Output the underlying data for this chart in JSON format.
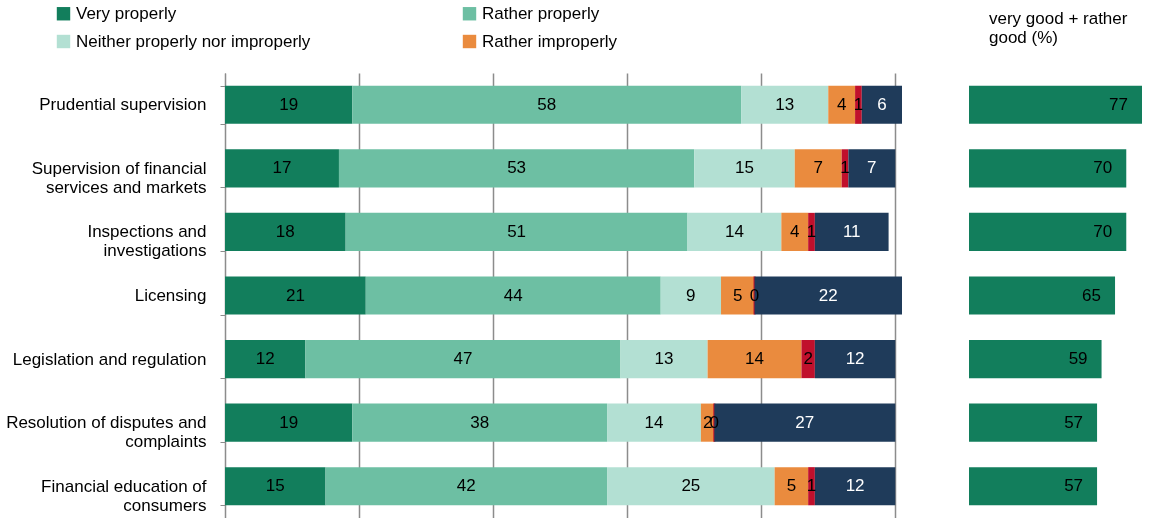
{
  "chart_data": [
    {
      "type": "bar",
      "orientation": "horizontal",
      "stacked": true,
      "categories": [
        "Prudential supervision",
        "Supervision of financial services and markets",
        "Inspections and investigations",
        "Licensing",
        "Legislation and regulation",
        "Resolution of disputes and complaints",
        "Financial education of consumers"
      ],
      "series": [
        {
          "name": "Very properly",
          "color": "#127e5c",
          "values": [
            19,
            17,
            18,
            21,
            12,
            19,
            15
          ]
        },
        {
          "name": "Rather properly",
          "color": "#6dbfa3",
          "values": [
            58,
            53,
            51,
            44,
            47,
            38,
            42
          ]
        },
        {
          "name": "Neither properly nor improperly",
          "color": "#b3e0d3",
          "values": [
            13,
            15,
            14,
            9,
            13,
            14,
            25
          ]
        },
        {
          "name": "Rather improperly",
          "color": "#ea8b3e",
          "values": [
            4,
            7,
            4,
            5,
            14,
            2,
            5
          ]
        },
        {
          "color": "#c0102c",
          "values": [
            1,
            1,
            1,
            0,
            2,
            0,
            1
          ]
        },
        {
          "color": "#1f3b5a",
          "values": [
            6,
            7,
            11,
            22,
            12,
            27,
            12
          ]
        }
      ],
      "xlim": [
        0,
        101
      ],
      "xticks": [
        {
          "value": 0,
          "label": null
        },
        {
          "value": 20,
          "label": null
        },
        {
          "value": 40,
          "label": null
        },
        {
          "value": 60,
          "label": null
        },
        {
          "value": 80,
          "label": null
        },
        {
          "value": 100,
          "label": null
        }
      ],
      "grid": "x",
      "legend": "top",
      "data_labels": true,
      "tick_labels": "y"
    },
    {
      "type": "bar",
      "orientation": "horizontal",
      "title": "very good + rather good (%)",
      "categories": [
        null,
        null,
        null,
        null,
        null,
        null,
        null
      ],
      "values": [
        77,
        70,
        70,
        65,
        59,
        57,
        57
      ],
      "color": "#127e5c",
      "xlim": [
        0,
        77
      ],
      "data_labels": true,
      "tick_labels": false
    }
  ]
}
